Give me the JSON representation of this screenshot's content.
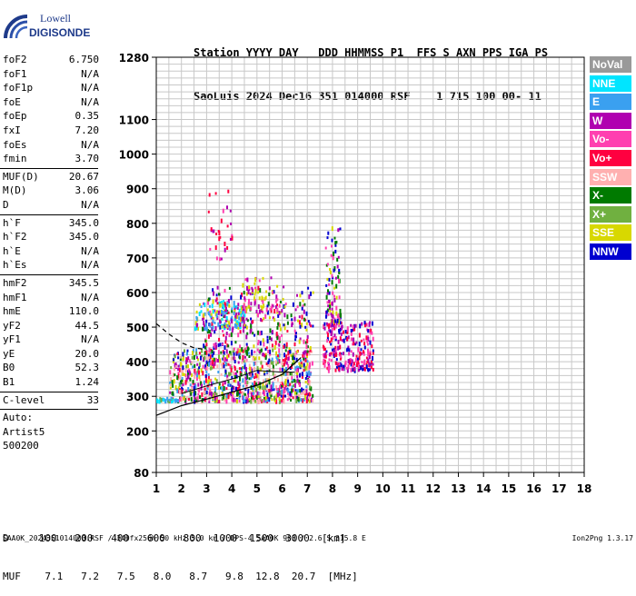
{
  "logo": {
    "line1": "Lowell",
    "line2": "DIGISONDE"
  },
  "header": {
    "line1": "Station YYYY DAY   DDD HHMMSS P1  FFS S AXN PPS IGA PS",
    "line2": "SaoLuis 2024 Dec16 351 014000 RSF    1 715 100 00- 11"
  },
  "params": {
    "group1": [
      {
        "name": "foF2",
        "value": "6.750"
      },
      {
        "name": "foF1",
        "value": "N/A"
      },
      {
        "name": "foF1p",
        "value": "N/A"
      },
      {
        "name": "foE",
        "value": "N/A"
      },
      {
        "name": "foEp",
        "value": "0.35"
      },
      {
        "name": "fxI",
        "value": "7.20"
      },
      {
        "name": "foEs",
        "value": "N/A"
      },
      {
        "name": "fmin",
        "value": "3.70"
      }
    ],
    "group2": [
      {
        "name": "MUF(D)",
        "value": "20.67"
      },
      {
        "name": "M(D)",
        "value": "3.06"
      },
      {
        "name": "D",
        "value": "N/A"
      }
    ],
    "group3": [
      {
        "name": "h`F",
        "value": "345.0"
      },
      {
        "name": "h`F2",
        "value": "345.0"
      },
      {
        "name": "h`E",
        "value": "N/A"
      },
      {
        "name": "h`Es",
        "value": "N/A"
      }
    ],
    "group4": [
      {
        "name": "hmF2",
        "value": "345.5"
      },
      {
        "name": "hmF1",
        "value": "N/A"
      },
      {
        "name": "hmE",
        "value": "110.0"
      },
      {
        "name": "yF2",
        "value": "44.5"
      },
      {
        "name": "yF1",
        "value": "N/A"
      },
      {
        "name": "yE",
        "value": "20.0"
      },
      {
        "name": "B0",
        "value": "52.3"
      },
      {
        "name": "B1",
        "value": "1.24"
      }
    ],
    "group5": [
      {
        "name": "C-level",
        "value": "33"
      }
    ],
    "auto": [
      "Auto:",
      "Artist5",
      "500200"
    ]
  },
  "legend": [
    {
      "label": "NoVal",
      "color": "#999999"
    },
    {
      "label": "NNE",
      "color": "#00e5ff"
    },
    {
      "label": "E",
      "color": "#3aa0f0"
    },
    {
      "label": "W",
      "color": "#b000b0"
    },
    {
      "label": "Vo-",
      "color": "#ff40b0"
    },
    {
      "label": "Vo+",
      "color": "#ff0040"
    },
    {
      "label": "SSW",
      "color": "#ffb0b0"
    },
    {
      "label": "X-",
      "color": "#007a00"
    },
    {
      "label": "X+",
      "color": "#70b040"
    },
    {
      "label": "SSE",
      "color": "#d8d800"
    },
    {
      "label": "NNW",
      "color": "#0000d0"
    }
  ],
  "dmuf": {
    "line1": "D     100   200   400   600   800  1000  1500  3000  [km]",
    "line2": "MUF    7.1   7.2   7.5   8.0   8.7   9.8  12.8  20.7  [MHz]"
  },
  "footer": "SAA0K_2024351014000.RSF / 340fx256h 50 kHz 5.0 km / DPS-4 SAA0K 903 / 2.6 S 315.8 E",
  "version": "Ion2Png 1.3.17",
  "chart_data": {
    "type": "scatter",
    "x_range": [
      1,
      18
    ],
    "y_range": [
      80,
      1280
    ],
    "x_ticks": [
      "1",
      "2",
      "3",
      "4",
      "5",
      "6",
      "7",
      "8",
      "9",
      "10",
      "11",
      "12",
      "13",
      "14",
      "15",
      "16",
      "17",
      "18"
    ],
    "y_ticks": [
      {
        "value": 80,
        "label": "80"
      },
      {
        "value": 200,
        "label": "200"
      },
      {
        "value": 300,
        "label": "300"
      },
      {
        "value": 400,
        "label": "400"
      },
      {
        "value": 500,
        "label": "500"
      },
      {
        "value": 600,
        "label": "600"
      },
      {
        "value": 700,
        "label": "700"
      },
      {
        "value": 800,
        "label": "800"
      },
      {
        "value": 900,
        "label": "900"
      },
      {
        "value": 1000,
        "label": "1000"
      },
      {
        "value": 1100,
        "label": "1100"
      },
      {
        "value": 1280,
        "label": "1280"
      }
    ],
    "grid": true,
    "echo_clusters": [
      {
        "f": [
          1.5,
          7.2
        ],
        "h": [
          290,
          440
        ],
        "density": 900,
        "colors": [
          "#0000d0",
          "#b000b0",
          "#007a00",
          "#d8d800",
          "#3aa0f0",
          "#ff0040",
          "#ff40b0",
          "#70b040",
          "#ffb0b0"
        ]
      },
      {
        "f": [
          2.8,
          7.2
        ],
        "h": [
          430,
          620
        ],
        "density": 300,
        "colors": [
          "#b000b0",
          "#0000d0",
          "#ff0040",
          "#ff40b0",
          "#d8d800",
          "#007a00"
        ]
      },
      {
        "f": [
          2.5,
          4.6
        ],
        "h": [
          500,
          580
        ],
        "density": 140,
        "colors": [
          "#00e5ff",
          "#3aa0f0",
          "#b000b0",
          "#d8d800"
        ]
      },
      {
        "f": [
          4.4,
          5.8
        ],
        "h": [
          550,
          650
        ],
        "density": 60,
        "colors": [
          "#d8d800",
          "#b000b0",
          "#ff40b0"
        ]
      },
      {
        "f": [
          7.6,
          9.6
        ],
        "h": [
          380,
          520
        ],
        "density": 260,
        "colors": [
          "#ff0040",
          "#ff40b0",
          "#b000b0",
          "#0000d0"
        ]
      },
      {
        "f": [
          7.7,
          8.3
        ],
        "h": [
          520,
          800
        ],
        "density": 90,
        "colors": [
          "#d8d800",
          "#ff40b0",
          "#b000b0",
          "#007a00",
          "#0000d0"
        ]
      },
      {
        "f": [
          3.0,
          4.0
        ],
        "h": [
          700,
          900
        ],
        "density": 30,
        "colors": [
          "#b000b0",
          "#ff40b0",
          "#ff0040"
        ]
      },
      {
        "f": [
          1.0,
          1.8
        ],
        "h": [
          290,
          300
        ],
        "density": 30,
        "colors": [
          "#00e5ff",
          "#3aa0f0",
          "#70b040"
        ]
      }
    ],
    "height_profile": {
      "f": [
        1.0,
        2.0,
        3.0,
        4.0,
        5.0,
        6.0,
        6.75
      ],
      "h": [
        245,
        273,
        292,
        312,
        332,
        363,
        412
      ]
    },
    "dashed_profile": {
      "f": [
        1.0,
        1.5,
        2.0,
        2.5,
        3.0
      ],
      "h": [
        510,
        480,
        455,
        440,
        435
      ]
    },
    "trace_curve": {
      "f": [
        2.0,
        3.0,
        4.0,
        5.0,
        6.0,
        6.5
      ],
      "h": [
        308,
        330,
        350,
        375,
        370,
        370
      ]
    }
  }
}
